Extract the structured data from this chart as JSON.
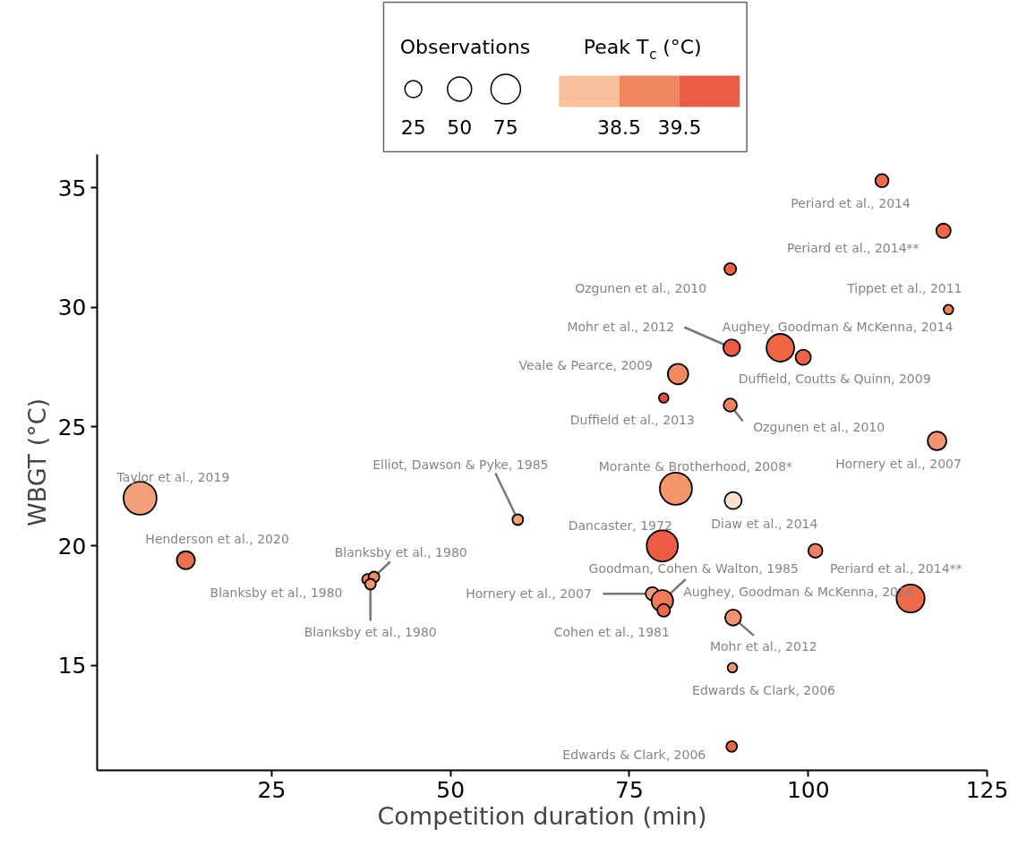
{
  "chart_data": {
    "type": "bubble",
    "xlabel": "Competition duration (min)",
    "ylabel": "WBGT (°C)",
    "legend_title": "Observations",
    "size_legend": [
      25,
      50,
      75
    ],
    "clabel": "Peak T$_{c}$ (°C)",
    "clim": [
      37.5,
      40.5
    ],
    "cticks": [
      38.5,
      39.5
    ],
    "xlim": [
      0.6,
      125
    ],
    "ylim": [
      10.6,
      36.4
    ],
    "xticks": [
      25,
      50,
      75,
      100,
      125
    ],
    "yticks": [
      15,
      20,
      25,
      30,
      35
    ],
    "x": [
      6.6,
      13.0,
      38.4,
      39.3,
      38.8,
      59.4,
      81.5,
      89.5,
      79.6,
      101.0,
      78.2,
      79.6,
      79.8,
      114.3,
      89.5,
      89.4,
      89.3,
      118.0,
      110.3,
      118.9,
      89.1,
      119.6,
      89.3,
      96.1,
      99.3,
      81.8,
      79.8,
      89.1
    ],
    "values": [
      22.0,
      19.4,
      18.6,
      18.7,
      18.4,
      21.1,
      22.4,
      21.9,
      20.0,
      19.8,
      18.0,
      17.7,
      17.3,
      17.8,
      17.0,
      14.9,
      11.6,
      24.4,
      35.3,
      33.2,
      31.6,
      29.9,
      28.3,
      28.3,
      27.9,
      27.2,
      26.2,
      25.9
    ],
    "sizes": [
      94,
      28,
      10,
      10,
      10,
      10,
      89,
      25,
      84,
      17,
      15,
      40,
      14,
      68,
      22,
      8,
      10,
      30,
      15,
      18,
      12,
      8,
      24,
      66,
      20,
      36,
      8,
      15
    ],
    "colors": [
      "#f4a07a",
      "#ef7050",
      "#f08c64",
      "#f08c64",
      "#f29470",
      "#f4a070",
      "#f4956a",
      "#fde1cb",
      "#ee5b45",
      "#f08060",
      "#f4a07c",
      "#ef7a55",
      "#ee6a4b",
      "#ee6a4b",
      "#f29170",
      "#f29570",
      "#ee6245",
      "#f19270",
      "#ef6a4a",
      "#ef6545",
      "#ee5f45",
      "#f08060",
      "#ee5b45",
      "#ef6545",
      "#ef6545",
      "#f28a60",
      "#e8473e",
      "#f28060"
    ],
    "annotations": [
      {
        "text": "Taylor et al., 2019",
        "x": 6.6,
        "y": 22.0
      },
      {
        "text": "Henderson et al., 2020",
        "x": 13.0,
        "y": 19.4
      },
      {
        "text": "Blanksby et al., 1980",
        "x": 38.4,
        "y": 18.6
      },
      {
        "text": "Blanksby et al., 1980",
        "x": 39.3,
        "y": 18.7
      },
      {
        "text": "Blanksby et al., 1980",
        "x": 38.8,
        "y": 18.4
      },
      {
        "text": "Elliot, Dawson & Pyke, 1985",
        "x": 59.4,
        "y": 21.1
      },
      {
        "text": "Morante & Brotherhood, 2008*",
        "x": 81.5,
        "y": 22.4
      },
      {
        "text": "Diaw et al., 2014",
        "x": 89.5,
        "y": 21.9
      },
      {
        "text": "Dancaster, 1972",
        "x": 79.6,
        "y": 20.0
      },
      {
        "text": "Periard et al., 2014**",
        "x": 101.0,
        "y": 19.8
      },
      {
        "text": "Hornery et al., 2007",
        "x": 78.2,
        "y": 18.0
      },
      {
        "text": "Goodman, Cohen & Walton, 1985",
        "x": 79.6,
        "y": 17.7
      },
      {
        "text": "Cohen et al., 1981",
        "x": 79.8,
        "y": 17.3
      },
      {
        "text": "Aughey, Goodman & McKenna, 2014",
        "x": 114.3,
        "y": 17.8
      },
      {
        "text": "Mohr et al., 2012",
        "x": 89.5,
        "y": 17.0
      },
      {
        "text": "Edwards & Clark, 2006",
        "x": 89.4,
        "y": 14.9
      },
      {
        "text": "Edwards & Clark, 2006",
        "x": 89.3,
        "y": 11.6
      },
      {
        "text": "Hornery et al., 2007",
        "x": 118.0,
        "y": 24.4
      },
      {
        "text": "Periard et al., 2014",
        "x": 110.3,
        "y": 35.3
      },
      {
        "text": "Periard et al., 2014**",
        "x": 118.9,
        "y": 33.2
      },
      {
        "text": "Ozgunen et al., 2010",
        "x": 89.1,
        "y": 31.6
      },
      {
        "text": "Tippet et al., 2011",
        "x": 119.6,
        "y": 29.9
      },
      {
        "text": "Mohr et al., 2012",
        "x": 89.3,
        "y": 28.3
      },
      {
        "text": "Aughey, Goodman & McKenna, 2014",
        "x": 96.1,
        "y": 28.3
      },
      {
        "text": "Duffield, Coutts & Quinn, 2009",
        "x": 99.3,
        "y": 27.9
      },
      {
        "text": "Veale & Pearce, 2009",
        "x": 81.8,
        "y": 27.2
      },
      {
        "text": "Duffield et al., 2013",
        "x": 79.8,
        "y": 26.2
      },
      {
        "text": "Ozgunen et al., 2010",
        "x": 89.1,
        "y": 25.9
      }
    ]
  }
}
